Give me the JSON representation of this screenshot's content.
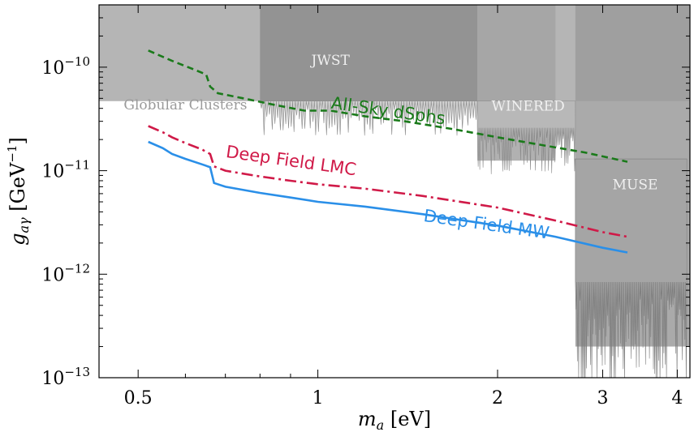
{
  "chart_data": {
    "type": "line",
    "xlabel_var": "m",
    "xlabel_sub": "a",
    "xlabel_unit": " [eV]",
    "ylabel_var": "g",
    "ylabel_sub": "aγ",
    "ylabel_unit": " [GeV",
    "ylabel_exp": "−1",
    "ylabel_close": "]",
    "xscale": "log",
    "yscale": "log",
    "xlim": [
      0.43,
      4.2
    ],
    "ylim": [
      1e-13,
      4e-10
    ],
    "x_ticks": [
      {
        "value": 0.5,
        "label": "0.5"
      },
      {
        "value": 1,
        "label": "1"
      },
      {
        "value": 2,
        "label": "2"
      },
      {
        "value": 3,
        "label": "3"
      },
      {
        "value": 4,
        "label": "4"
      }
    ],
    "y_ticks": [
      {
        "value": 1e-13,
        "base": "10",
        "exp": "−13"
      },
      {
        "value": 1e-12,
        "base": "10",
        "exp": "−12"
      },
      {
        "value": 1e-11,
        "base": "10",
        "exp": "−11"
      },
      {
        "value": 1e-10,
        "base": "10",
        "exp": "−10"
      }
    ],
    "regions": [
      {
        "name": "Globular Clusters",
        "x": [
          0.43,
          4.2
        ],
        "y_low": 4.7e-11,
        "y_high": 4e-10,
        "color": "#b5b5b5",
        "label_x": 0.6,
        "label_y": 3.9e-11,
        "label_color": "#9a9a9a"
      },
      {
        "name": "JWST",
        "x": [
          0.8,
          1.85
        ],
        "y_low": 4.7e-11,
        "y_high": 4e-10,
        "color": "#8d8d8d",
        "label_x": 1.05,
        "label_y": 1.05e-10,
        "label_color": "#f0f0f0"
      },
      {
        "name": "WINERED",
        "x": [
          1.85,
          2.5
        ],
        "y_low": 1.25e-11,
        "y_high": 4e-10,
        "color": "#a3a3a3",
        "label_x": 2.25,
        "label_y": 3.8e-11,
        "label_color": "#f0f0f0"
      },
      {
        "name": "MUSE",
        "x": [
          2.7,
          4.2
        ],
        "y_low": 2e-13,
        "y_high": 4e-10,
        "color": "#9b9b9b",
        "label_x": 3.4,
        "label_y": 6.6e-12,
        "label_color": "#f0f0f0"
      }
    ],
    "series": [
      {
        "name": "All-Sky dSphs",
        "color": "#1a7a1a",
        "dash": "8,5",
        "x": [
          0.52,
          0.57,
          0.62,
          0.65,
          0.66,
          0.68,
          0.75,
          0.85,
          0.95,
          1.05,
          1.2,
          1.4,
          1.7,
          2.0,
          2.4,
          2.8,
          3.3
        ],
        "y": [
          1.45e-10,
          1.15e-10,
          9.5e-11,
          8.5e-11,
          6.5e-11,
          5.6e-11,
          5e-11,
          4.3e-11,
          3.8e-11,
          3.8e-11,
          3.35e-11,
          3e-11,
          2.5e-11,
          2.1e-11,
          1.75e-11,
          1.5e-11,
          1.22e-11
        ],
        "label_x": 1.05,
        "label_y": 4e-11,
        "label_rotate": 8
      },
      {
        "name": "Deep Field LMC",
        "color": "#d01a48",
        "dash": "14,5,3,5",
        "x": [
          0.52,
          0.55,
          0.57,
          0.6,
          0.64,
          0.66,
          0.67,
          0.7,
          0.8,
          0.9,
          1.0,
          1.2,
          1.5,
          2.0,
          2.5,
          3.0,
          3.3
        ],
        "y": [
          2.7e-11,
          2.35e-11,
          2.1e-11,
          1.85e-11,
          1.6e-11,
          1.45e-11,
          1.1e-11,
          1e-11,
          8.8e-12,
          8e-12,
          7.4e-12,
          6.7e-12,
          5.7e-12,
          4.4e-12,
          3.3e-12,
          2.55e-12,
          2.3e-12
        ],
        "label_x": 0.7,
        "label_y": 1.35e-11,
        "label_rotate": 8
      },
      {
        "name": "Deep Field MW",
        "color": "#2a8fe8",
        "dash": "",
        "x": [
          0.52,
          0.55,
          0.57,
          0.6,
          0.64,
          0.66,
          0.67,
          0.7,
          0.8,
          0.9,
          1.0,
          1.2,
          1.5,
          2.0,
          2.5,
          3.0,
          3.3
        ],
        "y": [
          1.9e-11,
          1.65e-11,
          1.45e-11,
          1.3e-11,
          1.15e-11,
          1.08e-11,
          7.6e-12,
          7e-12,
          6.1e-12,
          5.5e-12,
          5e-12,
          4.5e-12,
          3.8e-12,
          2.95e-12,
          2.3e-12,
          1.8e-12,
          1.62e-12
        ],
        "label_x": 1.5,
        "label_y": 3.25e-12,
        "label_rotate": 8
      }
    ]
  }
}
